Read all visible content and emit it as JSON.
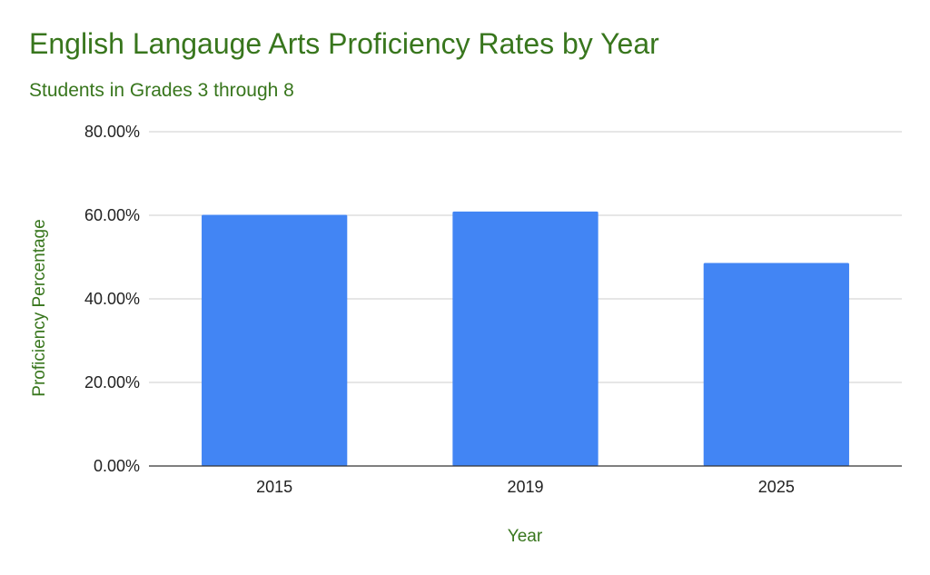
{
  "chart_data": {
    "type": "bar",
    "title": "English Langauge Arts Proficiency Rates by Year",
    "subtitle": "Students in Grades 3 through 8",
    "xlabel": "Year",
    "ylabel": "Proficiency Percentage",
    "categories": [
      "2015",
      "2019",
      "2025"
    ],
    "series": [
      {
        "values": [
          60.1,
          60.9,
          48.6
        ]
      }
    ],
    "ylim": [
      0,
      80
    ],
    "yticks": [
      "0.00%",
      "20.00%",
      "40.00%",
      "60.00%",
      "80.00%"
    ],
    "grid": true,
    "legend": "none",
    "colors": {
      "bar": "#4285f4",
      "title": "#38761d",
      "gridline": "#cccccc",
      "baseline": "#333333"
    }
  }
}
